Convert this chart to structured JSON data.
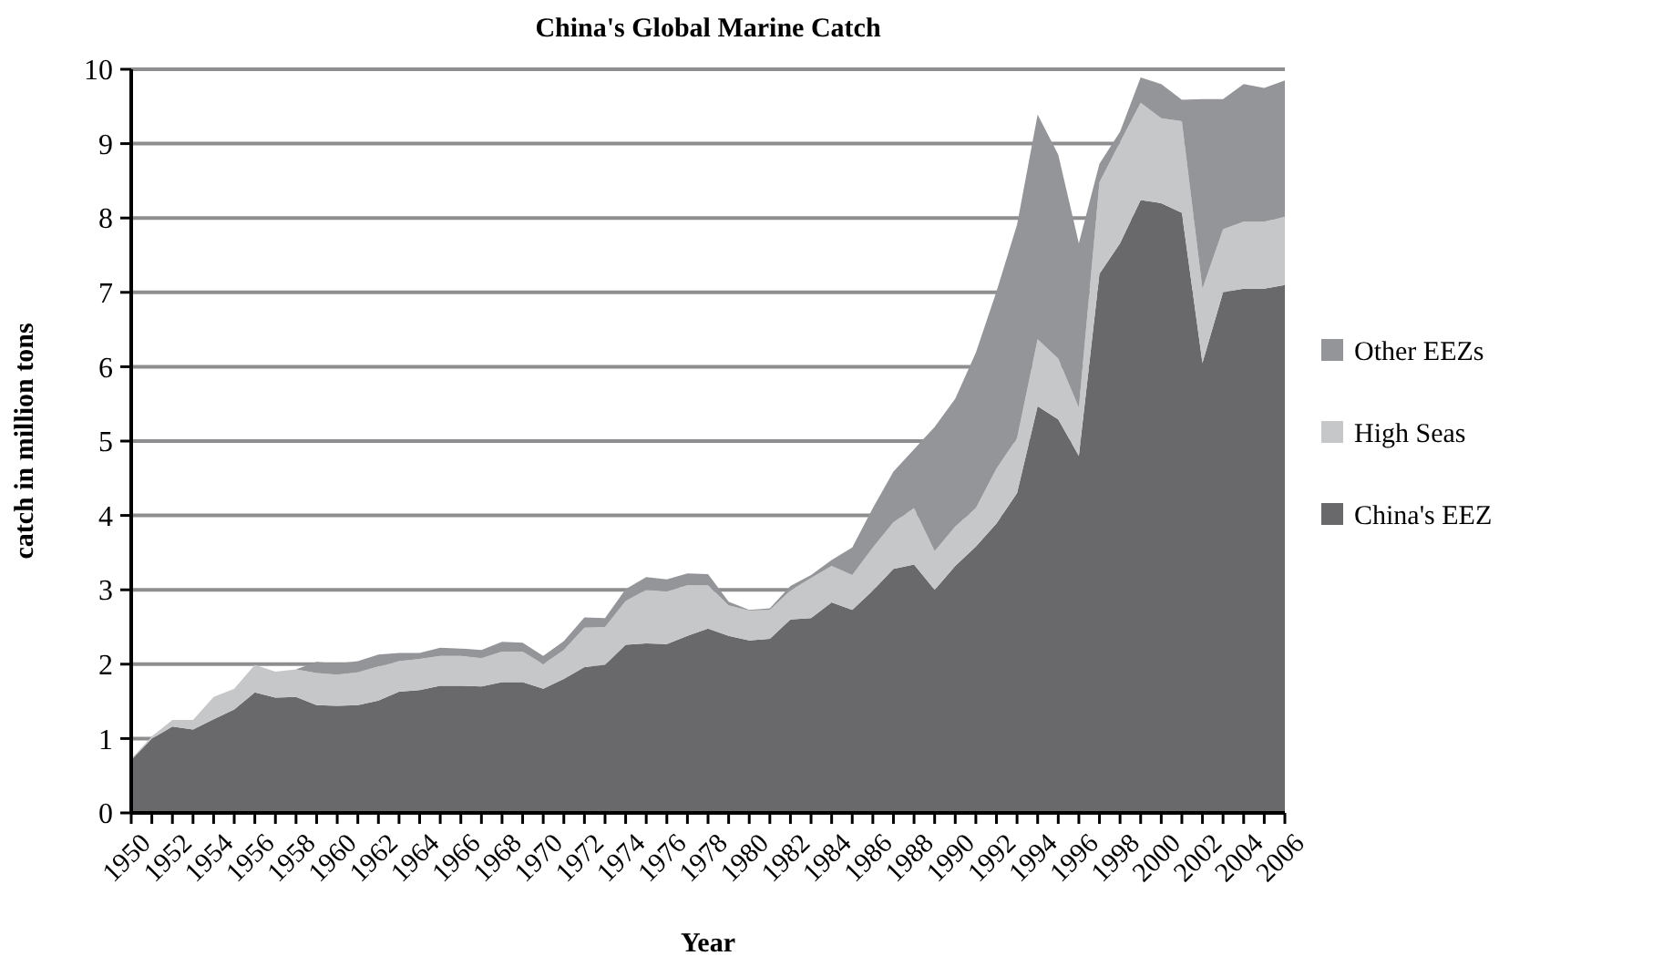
{
  "chart_data": {
    "type": "area",
    "title": "China's Global Marine Catch",
    "xlabel": "Year",
    "ylabel": "catch in million tons",
    "categories": [
      "1950",
      null,
      "1952",
      null,
      "1954",
      null,
      "1956",
      null,
      "1958",
      null,
      "1960",
      null,
      "1962",
      null,
      "1964",
      null,
      "1966",
      null,
      "1968",
      null,
      "1970",
      null,
      "1972",
      null,
      "1974",
      null,
      "1976",
      null,
      "1978",
      null,
      "1980",
      null,
      "1982",
      null,
      "1984",
      null,
      "1986",
      null,
      "1988",
      null,
      "1990",
      null,
      "1992",
      null,
      "1994",
      null,
      "1996",
      null,
      "1998",
      null,
      "2000",
      null,
      "2002",
      null,
      "2004",
      null,
      "2006"
    ],
    "stacked": true,
    "ylim": [
      0,
      10
    ],
    "yticks": [
      0,
      1,
      2,
      3,
      4,
      5,
      6,
      7,
      8,
      9,
      10
    ],
    "grid": "y",
    "legend": "right",
    "series": [
      {
        "name": "China's EEZ",
        "color": "#69696b",
        "values": [
          0.71,
          1.0,
          1.16,
          1.12,
          1.26,
          1.39,
          1.62,
          1.55,
          1.56,
          1.45,
          1.44,
          1.45,
          1.51,
          1.63,
          1.65,
          1.71,
          1.71,
          1.7,
          1.76,
          1.76,
          1.67,
          1.8,
          1.96,
          1.99,
          2.26,
          2.28,
          2.27,
          2.38,
          2.48,
          2.38,
          2.32,
          2.34,
          2.6,
          2.62,
          2.83,
          2.73,
          2.99,
          3.28,
          3.34,
          3.0,
          3.32,
          3.58,
          3.89,
          4.3,
          5.47,
          5.29,
          4.8,
          7.25,
          7.66,
          8.24,
          8.2,
          8.07,
          6.05,
          7.0,
          7.05,
          7.05,
          7.1
        ]
      },
      {
        "name": "High Seas",
        "color": "#c6c7c9",
        "values": [
          0.0,
          0.03,
          0.09,
          0.13,
          0.3,
          0.28,
          0.37,
          0.35,
          0.37,
          0.43,
          0.42,
          0.44,
          0.46,
          0.41,
          0.42,
          0.4,
          0.4,
          0.38,
          0.41,
          0.41,
          0.33,
          0.39,
          0.53,
          0.51,
          0.59,
          0.72,
          0.71,
          0.68,
          0.58,
          0.41,
          0.4,
          0.39,
          0.39,
          0.54,
          0.49,
          0.47,
          0.58,
          0.63,
          0.76,
          0.52,
          0.53,
          0.52,
          0.74,
          0.74,
          0.9,
          0.82,
          0.65,
          1.23,
          1.36,
          1.31,
          1.14,
          1.23,
          1.0,
          0.85,
          0.9,
          0.9,
          0.92
        ]
      },
      {
        "name": "Other EEZs",
        "color": "#939598",
        "values": [
          0.01,
          0.0,
          0.0,
          0.0,
          0.0,
          0.0,
          0.0,
          0.0,
          0.0,
          0.15,
          0.15,
          0.15,
          0.16,
          0.11,
          0.08,
          0.11,
          0.1,
          0.11,
          0.13,
          0.12,
          0.11,
          0.12,
          0.14,
          0.12,
          0.16,
          0.17,
          0.16,
          0.16,
          0.15,
          0.05,
          0.01,
          0.02,
          0.06,
          0.04,
          0.08,
          0.37,
          0.53,
          0.68,
          0.79,
          1.67,
          1.72,
          2.09,
          2.38,
          2.87,
          3.02,
          2.74,
          2.21,
          0.25,
          0.14,
          0.34,
          0.46,
          0.29,
          2.55,
          1.75,
          1.85,
          1.8,
          1.83
        ]
      }
    ]
  }
}
